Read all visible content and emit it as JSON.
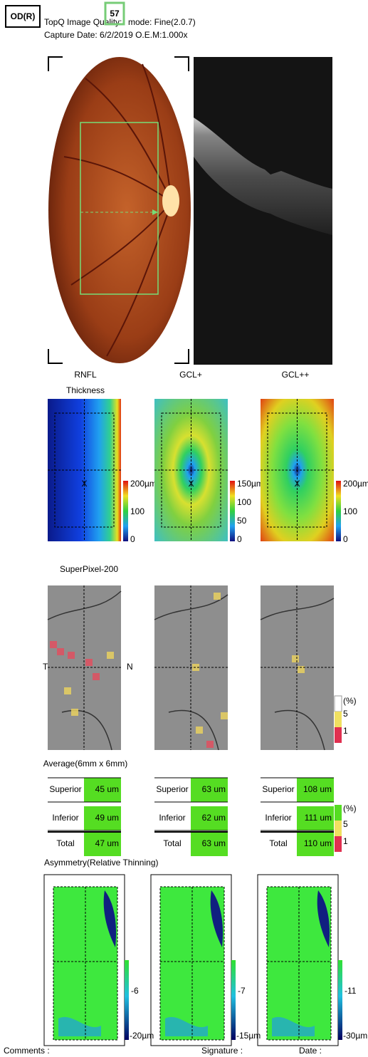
{
  "header": {
    "eye": "OD(R)",
    "quality_label": "TopQ Image Quality:",
    "quality": "57",
    "mode": "mode: Fine(2.0.7)",
    "capture": "Capture Date: 6/2/2019  O.E.M:1.000x"
  },
  "map_titles": [
    [
      "RNFL",
      "Thickness"
    ],
    [
      "GCL+"
    ],
    [
      "GCL++"
    ]
  ],
  "thickness_scales": [
    [
      "200µm",
      "100",
      "0"
    ],
    [
      "150µm",
      "100",
      "50",
      "0"
    ],
    [
      "200µm",
      "100",
      "0"
    ]
  ],
  "superpixel": {
    "title": "SuperPixel-200",
    "temporal": "T",
    "nasal": "N",
    "legend": [
      "(%)",
      "5",
      "1"
    ]
  },
  "average": {
    "title": "Average(6mm x 6mm)",
    "tables": [
      [
        [
          "Superior",
          "45 um"
        ],
        [
          "Inferior",
          "49 um"
        ],
        [
          "Total",
          "47 um"
        ]
      ],
      [
        [
          "Superior",
          "63 um"
        ],
        [
          "Inferior",
          "62 um"
        ],
        [
          "Total",
          "63 um"
        ]
      ],
      [
        [
          "Superior",
          "108 um"
        ],
        [
          "Inferior",
          "111 um"
        ],
        [
          "Total",
          "110 um"
        ]
      ]
    ],
    "legend": [
      "(%)",
      "5",
      "1"
    ]
  },
  "asymmetry": {
    "title": "Asymmetry(Relative Thinning)",
    "scales": [
      [
        "-6",
        "-20µm"
      ],
      [
        "-7",
        "-15µm"
      ],
      [
        "-11",
        "-30µm"
      ]
    ]
  },
  "footer": {
    "comments": "Comments :",
    "signature": "Signature :",
    "date": "Date :"
  }
}
